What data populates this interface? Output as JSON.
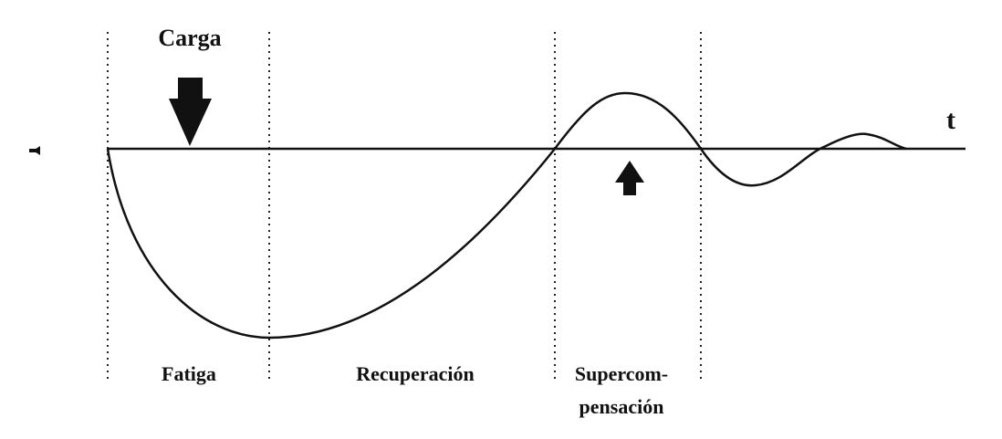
{
  "labels": {
    "load": "Carga",
    "time_axis": "t",
    "phases": [
      "Fatiga",
      "Recuperación",
      [
        "Supercom-",
        "pensación"
      ]
    ]
  }
}
